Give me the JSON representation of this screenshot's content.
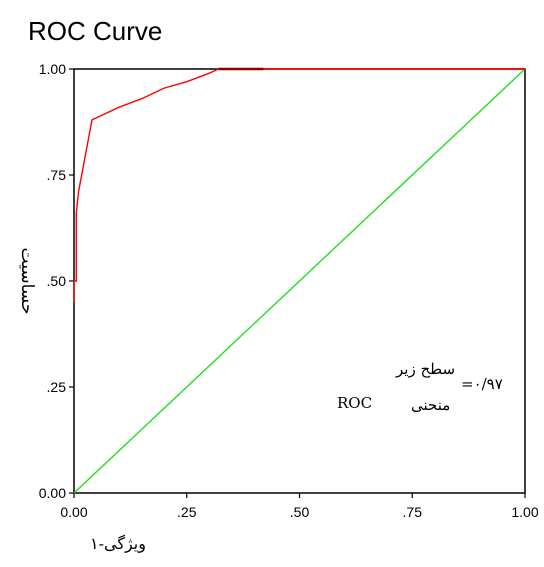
{
  "chart_data": {
    "type": "line",
    "title": "ROC Curve",
    "xlabel": "ویژگی-۱",
    "ylabel": "حساسیت",
    "xlim": [
      0,
      1
    ],
    "ylim": [
      0,
      1
    ],
    "x_ticks": [
      "0.00",
      ".25",
      ".50",
      ".75",
      "1.00"
    ],
    "y_ticks": [
      "0.00",
      ".25",
      ".50",
      ".75",
      "1.00"
    ],
    "grid": false,
    "series": [
      {
        "color": "#ff0000",
        "x": [
          0.0,
          0.0,
          0.005,
          0.005,
          0.01,
          0.04,
          0.06,
          0.1,
          0.15,
          0.2,
          0.25,
          0.3,
          0.32,
          0.42,
          0.5,
          0.75,
          1.0
        ],
        "y": [
          0.45,
          0.5,
          0.5,
          0.66,
          0.71,
          0.88,
          0.89,
          0.91,
          0.93,
          0.955,
          0.97,
          0.99,
          1.0,
          1.0,
          1.0,
          1.0,
          1.0
        ]
      },
      {
        "color": "#22dd22",
        "x": [
          0,
          1
        ],
        "y": [
          0,
          1
        ]
      }
    ],
    "annotation": {
      "line1": "سطح زیر",
      "line2_word": "منحنی",
      "line2_roc": "ROC",
      "value": "=۰/۹۷"
    }
  }
}
